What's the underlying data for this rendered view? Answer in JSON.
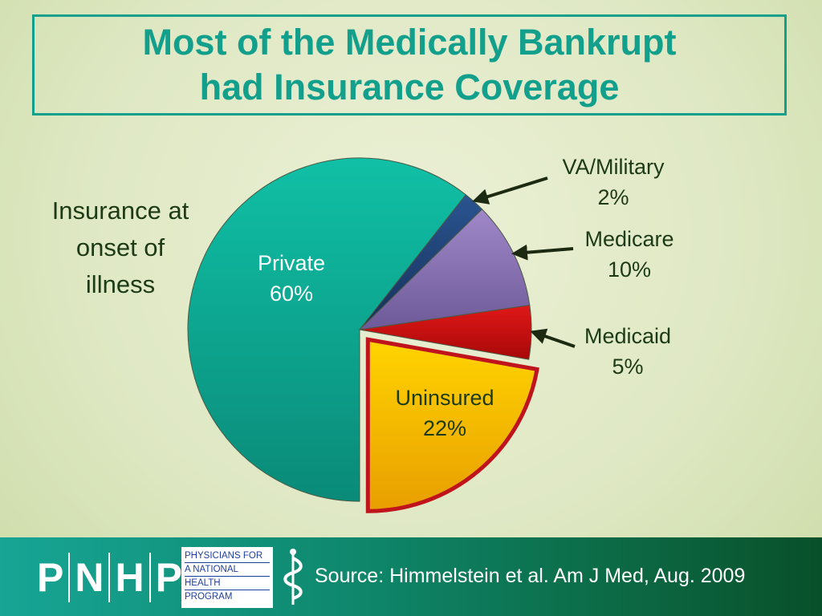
{
  "slide": {
    "title_line1": "Most of the Medically Bankrupt",
    "title_line2": "had Insurance Coverage",
    "side_label_line1": "Insurance at",
    "side_label_line2": "onset of",
    "side_label_line3": "illness"
  },
  "chart_data": {
    "type": "pie",
    "title": "",
    "slices": [
      {
        "label": "Private",
        "value": 60,
        "display": "60%",
        "color": "#12a896",
        "label_color": "#ffffff",
        "label_placement": "inside"
      },
      {
        "label": "VA/Military",
        "value": 2,
        "display": "2%",
        "color": "#1e3f6e",
        "label_color": "#1d3a16",
        "label_placement": "outside-arrow"
      },
      {
        "label": "Medicare",
        "value": 10,
        "display": "10%",
        "color": "#8a72b0",
        "label_color": "#1d3a16",
        "label_placement": "outside-arrow"
      },
      {
        "label": "Medicaid",
        "value": 5,
        "display": "5%",
        "color": "#cc1010",
        "label_color": "#1d3a16",
        "label_placement": "outside-arrow"
      },
      {
        "label": "Uninsured",
        "value": 22,
        "display": "22%",
        "color": "#f5c000",
        "label_color": "#1d3a16",
        "label_placement": "inside",
        "exploded": true,
        "outline": "#c0141c"
      }
    ]
  },
  "footer": {
    "logo_letters": [
      "P",
      "N",
      "H",
      "P"
    ],
    "logo_box_lines": [
      "PHYSICIANS FOR",
      "A NATIONAL",
      "HEALTH",
      "PROGRAM"
    ],
    "source": "Source: Himmelstein et al. Am J Med, Aug. 2009"
  }
}
